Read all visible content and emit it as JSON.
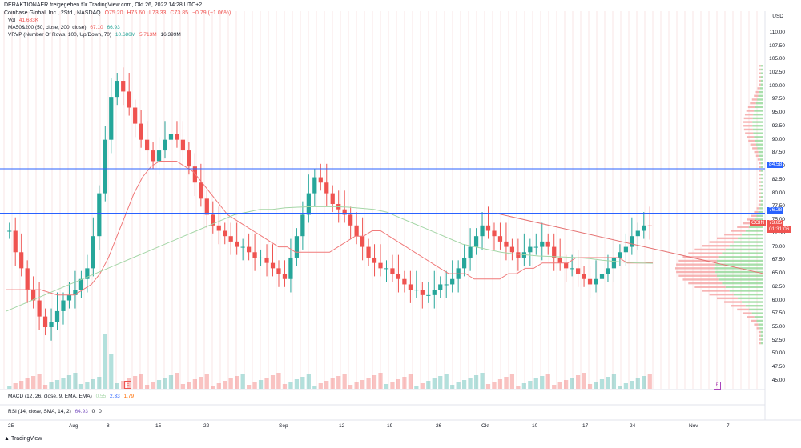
{
  "header": {
    "attribution": "DERAKTIONAER freigegeben für TradingView.com, Okt 26, 2022 14:28 UTC+2",
    "symbol": "Coinbase Global, Inc., 2Std., NASDAQ",
    "ohlc": {
      "o": "O75.20",
      "h": "H75.60",
      "l": "L73.33",
      "c": "C73.85",
      "chg": "−0.79 (−1.06%)"
    }
  },
  "indicators": {
    "vol": {
      "label": "Vol",
      "value": "41.683K"
    },
    "ma": {
      "label": "MA50&200 (50, close, 200, close)",
      "v1": "67.10",
      "v2": "66.93"
    },
    "vrvp": {
      "label": "VRVP (Number Of Rows, 100, Up/Down, 70)",
      "v1": "10.686M",
      "v2": "5.713M",
      "v3": "16.399M"
    },
    "macd": {
      "label": "MACD (12, 26, close, 9, EMA, EMA)",
      "v1": "0.55",
      "v2": "2.33",
      "v3": "1.79"
    },
    "rsi": {
      "label": "RSI (14, close, SMA, 14, 2)",
      "v1": "64.93",
      "v2": "0",
      "v3": "0"
    }
  },
  "axis": {
    "currency": "USD",
    "price_ticks": [
      "110.00",
      "107.50",
      "105.00",
      "102.50",
      "100.00",
      "97.50",
      "95.00",
      "92.50",
      "90.00",
      "87.50",
      "85.00",
      "82.50",
      "80.00",
      "77.50",
      "75.00",
      "72.50",
      "70.00",
      "67.50",
      "65.00",
      "62.50",
      "60.00",
      "57.50",
      "55.00",
      "52.50",
      "50.00",
      "47.50",
      "45.00"
    ],
    "date_ticks": [
      "25",
      "Aug",
      "8",
      "15",
      "22",
      "Sep",
      "12",
      "19",
      "26",
      "Okt",
      "10",
      "17",
      "24",
      "Nov",
      "7"
    ]
  },
  "tags": {
    "h_line_1": "84.58",
    "h_line_2": "76.28",
    "symbol": "COIN",
    "price": "73.85",
    "countdown": "01:31:06"
  },
  "markers": {
    "earnings": "E",
    "event": "E"
  },
  "footer": {
    "brand": "TradingView"
  },
  "colors": {
    "up": "#26a69a",
    "down": "#ef5350",
    "ma50": "#f07a7a",
    "ma200": "#a5d6a7",
    "hline": "#2962ff",
    "trendline": "#e57373",
    "grid_v": "#f5c6c6"
  },
  "chart_data": {
    "type": "candlestick",
    "ylim": [
      43.5,
      114
    ],
    "horizontal_lines": [
      84.58,
      76.28
    ],
    "trendline": [
      [
        0.65,
        76.2
      ],
      [
        1.0,
        65.0
      ]
    ],
    "closes": [
      73,
      69,
      66,
      62,
      60,
      57,
      55,
      56,
      58,
      60,
      61,
      62,
      64,
      66,
      72,
      80,
      90,
      98,
      101,
      99,
      96,
      93,
      90,
      88,
      86,
      88,
      90,
      91,
      90,
      88,
      85,
      82,
      79,
      76,
      74,
      73,
      72,
      71,
      70,
      70,
      69,
      68,
      68,
      67,
      66,
      65,
      64,
      68,
      72,
      76,
      80,
      83,
      82,
      80,
      78,
      77,
      76,
      74,
      72,
      70,
      68,
      67,
      66,
      66,
      65,
      64,
      63,
      62,
      62,
      61,
      61,
      62,
      63,
      63,
      64,
      66,
      68,
      70,
      72,
      74,
      73,
      72,
      71,
      70,
      69,
      68,
      69,
      70,
      70,
      71,
      70,
      68,
      67,
      66,
      66,
      65,
      64,
      63,
      64,
      65,
      66,
      68,
      69,
      70,
      72,
      73,
      74,
      73.85
    ],
    "ma50": [
      62,
      62,
      62,
      62,
      62,
      61.5,
      61,
      61,
      61,
      62,
      63,
      65,
      68,
      72,
      76,
      80,
      83,
      85,
      86,
      86,
      86,
      85,
      84,
      82,
      80,
      78,
      76,
      75,
      74,
      73,
      72,
      71,
      70,
      70,
      69,
      69,
      69,
      69,
      69,
      70,
      71,
      72,
      72,
      73,
      73,
      72,
      71,
      70,
      69,
      68,
      67,
      66,
      65,
      65,
      65,
      64,
      64,
      64,
      64,
      65,
      65,
      66,
      66,
      67,
      67,
      67,
      67,
      68,
      68,
      68,
      68,
      68,
      68,
      67,
      67,
      67,
      67.1
    ],
    "ma200": [
      58,
      59,
      60,
      61,
      62,
      63,
      64,
      65,
      66,
      67,
      68,
      69,
      70,
      71,
      72,
      73,
      74,
      75,
      76,
      76.5,
      77,
      77,
      77.3,
      77.4,
      77.5,
      77.5,
      77.5,
      77.4,
      77.2,
      77,
      76.5,
      75.5,
      74.5,
      73.5,
      72.5,
      71.5,
      70.5,
      70,
      69.5,
      69,
      68.7,
      68.5,
      68.3,
      68.2,
      68.1,
      68,
      67.8,
      67.5,
      67.3,
      67.1,
      67,
      66.93
    ]
  }
}
